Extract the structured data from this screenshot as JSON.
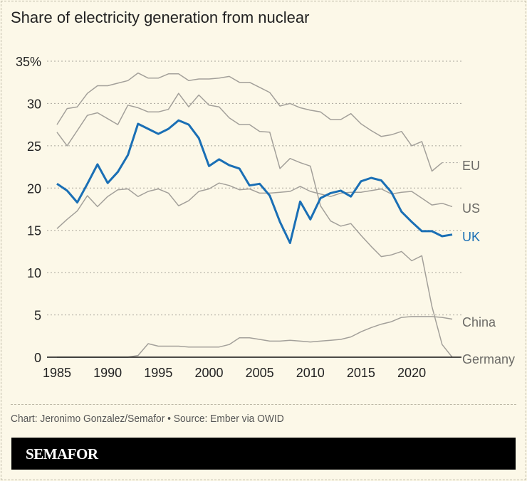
{
  "chart_data": {
    "type": "line",
    "title": "Share of electricity generation from nuclear",
    "xlabel": "",
    "ylabel": "",
    "xlim": [
      1985,
      2024
    ],
    "ylim": [
      0,
      35
    ],
    "x_ticks": [
      "1985",
      "1990",
      "1995",
      "2000",
      "2005",
      "2010",
      "2015",
      "2020"
    ],
    "y_ticks": [
      "0",
      "5",
      "10",
      "15",
      "20",
      "25",
      "30",
      "35%"
    ],
    "grid": "horizontal dotted",
    "legend": "direct labels at line ends (right)",
    "x": [
      1985,
      1986,
      1987,
      1988,
      1989,
      1990,
      1991,
      1992,
      1993,
      1994,
      1995,
      1996,
      1997,
      1998,
      1999,
      2000,
      2001,
      2002,
      2003,
      2004,
      2005,
      2006,
      2007,
      2008,
      2009,
      2010,
      2011,
      2012,
      2013,
      2014,
      2015,
      2016,
      2017,
      2018,
      2019,
      2020,
      2021,
      2022,
      2023,
      2024
    ],
    "series": [
      {
        "name": "EU",
        "color": "#a3a09a",
        "values": [
          27.5,
          29.4,
          29.6,
          31.2,
          32.1,
          32.1,
          32.4,
          32.7,
          33.6,
          33.0,
          33.0,
          33.5,
          33.5,
          32.7,
          32.9,
          32.9,
          33.0,
          33.2,
          32.5,
          32.5,
          31.9,
          31.3,
          29.7,
          30.0,
          29.5,
          29.2,
          29.0,
          28.1,
          28.1,
          28.8,
          27.6,
          26.8,
          26.1,
          26.3,
          26.7,
          25.0,
          25.5,
          22.0,
          23.0,
          null
        ]
      },
      {
        "name": "Germany",
        "color": "#a3a09a",
        "values": [
          26.6,
          25.0,
          26.8,
          28.6,
          28.9,
          28.2,
          27.5,
          29.8,
          29.5,
          29.0,
          29.0,
          29.3,
          31.2,
          29.6,
          31.0,
          29.8,
          29.6,
          28.3,
          27.5,
          27.5,
          26.7,
          26.6,
          22.3,
          23.5,
          23.0,
          22.6,
          17.9,
          16.1,
          15.5,
          15.8,
          14.4,
          13.1,
          11.9,
          12.1,
          12.5,
          11.4,
          12.0,
          6.0,
          1.5,
          0.0
        ]
      },
      {
        "name": "US",
        "color": "#a3a09a",
        "values": [
          15.2,
          16.3,
          17.3,
          19.1,
          17.8,
          19.0,
          19.8,
          19.9,
          19.0,
          19.6,
          19.9,
          19.4,
          17.9,
          18.5,
          19.6,
          19.9,
          20.6,
          20.3,
          19.8,
          19.9,
          19.4,
          19.4,
          19.5,
          19.6,
          20.2,
          19.6,
          19.3,
          19.0,
          19.4,
          19.5,
          19.5,
          19.7,
          19.9,
          19.3,
          19.5,
          19.6,
          18.8,
          18.0,
          18.2,
          17.8
        ]
      },
      {
        "name": "China",
        "color": "#a3a09a",
        "values": [
          0,
          0,
          0,
          0,
          0,
          0,
          0,
          0,
          0.2,
          1.6,
          1.3,
          1.3,
          1.3,
          1.2,
          1.2,
          1.2,
          1.2,
          1.5,
          2.3,
          2.3,
          2.1,
          1.9,
          1.9,
          2.0,
          1.9,
          1.8,
          1.9,
          2.0,
          2.1,
          2.4,
          3.0,
          3.5,
          3.9,
          4.2,
          4.7,
          4.8,
          4.8,
          4.8,
          4.7,
          4.5
        ]
      },
      {
        "name": "UK",
        "color": "#1a6fb5",
        "values": [
          20.5,
          19.7,
          18.3,
          20.5,
          22.8,
          20.6,
          21.9,
          23.9,
          27.6,
          27.0,
          26.4,
          27.0,
          28.0,
          27.5,
          25.9,
          22.6,
          23.4,
          22.7,
          22.3,
          20.3,
          20.5,
          19.1,
          16.0,
          13.5,
          18.4,
          16.3,
          18.8,
          19.4,
          19.7,
          19.0,
          20.8,
          21.2,
          20.9,
          19.5,
          17.2,
          16.0,
          14.9,
          14.9,
          14.3,
          14.5
        ]
      }
    ]
  },
  "footer": {
    "source": "Chart: Jeronimo Gonzalez/Semafor • Source: Ember via OWID",
    "brand": "SEMAFOR"
  }
}
